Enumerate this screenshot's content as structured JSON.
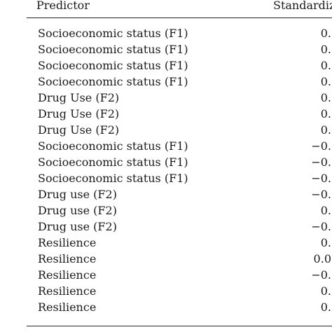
{
  "table": {
    "headers": {
      "predictor": "Predictor",
      "standardized": "Standardize"
    },
    "rows": [
      {
        "predictor": "Socioeconomic status (F1)",
        "value": "0."
      },
      {
        "predictor": "Socioeconomic status (F1)",
        "value": "0."
      },
      {
        "predictor": "Socioeconomic status (F1)",
        "value": "0."
      },
      {
        "predictor": "Socioeconomic status (F1)",
        "value": "0."
      },
      {
        "predictor": "Drug Use (F2)",
        "value": "0."
      },
      {
        "predictor": "Drug Use (F2)",
        "value": "0."
      },
      {
        "predictor": "Drug Use (F2)",
        "value": "0."
      },
      {
        "predictor": "Socioeconomic status (F1)",
        "value": "−0."
      },
      {
        "predictor": "Socioeconomic status (F1)",
        "value": "−0."
      },
      {
        "predictor": "Socioeconomic status (F1)",
        "value": "−0."
      },
      {
        "predictor": "Drug use (F2)",
        "value": "−0."
      },
      {
        "predictor": "Drug use (F2)",
        "value": "0."
      },
      {
        "predictor": "Drug use (F2)",
        "value": "−0."
      },
      {
        "predictor": "Resilience",
        "value": "0."
      },
      {
        "predictor": "Resilience",
        "value": "0.0"
      },
      {
        "predictor": "Resilience",
        "value": "−0."
      },
      {
        "predictor": "Resilience",
        "value": "0."
      },
      {
        "predictor": "Resilience",
        "value": "0."
      }
    ]
  }
}
